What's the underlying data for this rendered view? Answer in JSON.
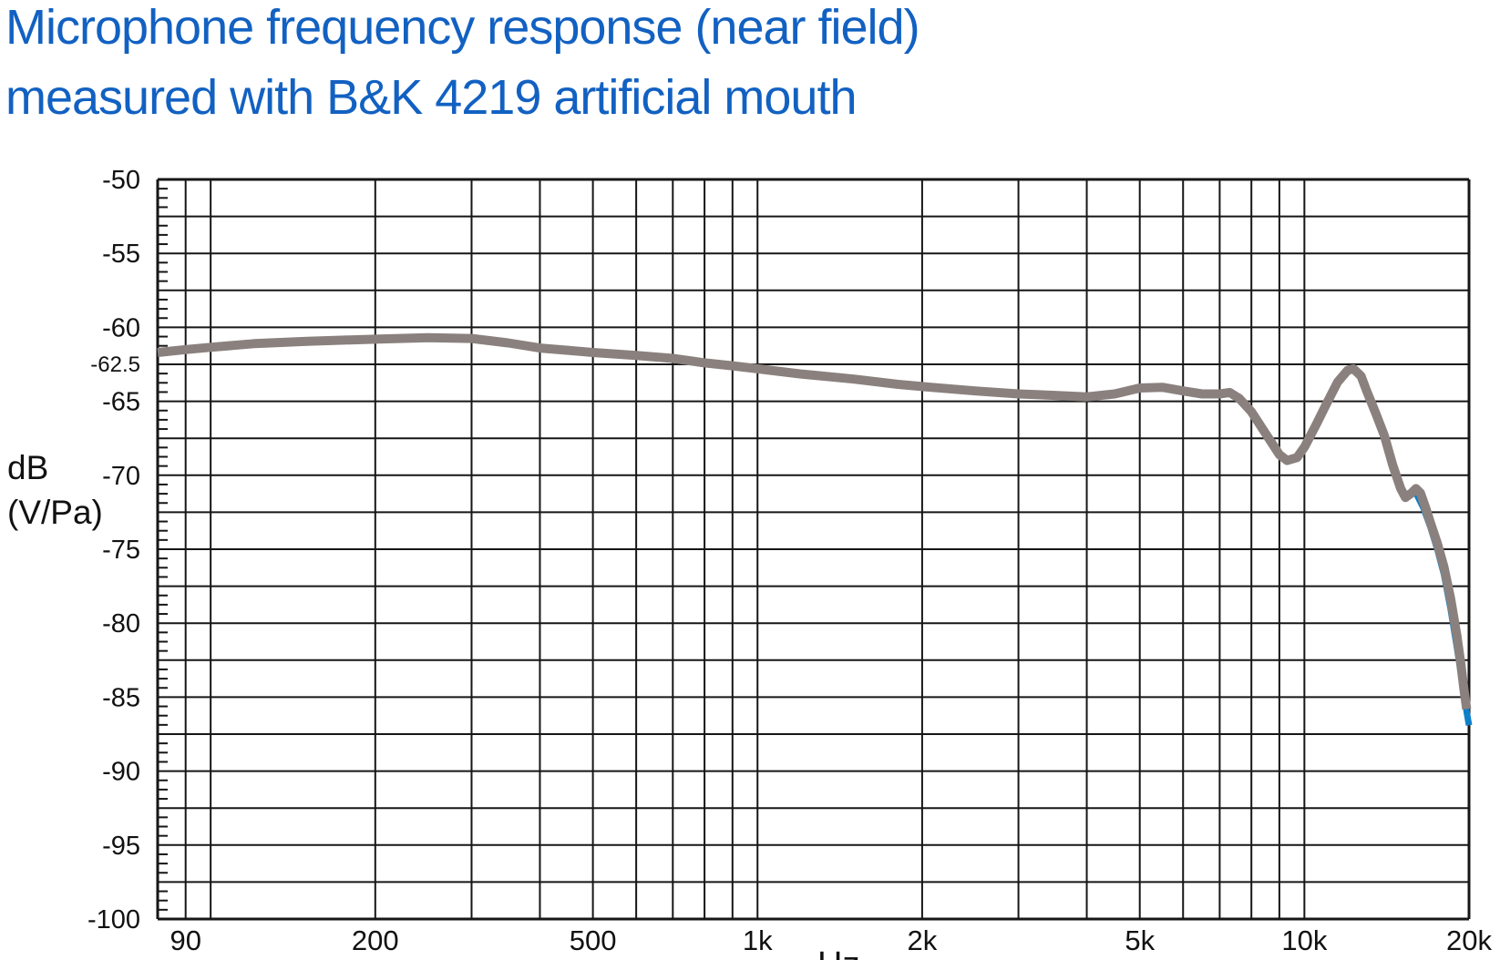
{
  "title": {
    "line1": "Microphone frequency response (near field)",
    "line2": "measured with B&K 4219 artificial mouth"
  },
  "axes": {
    "y_label_line1": "dB",
    "y_label_line2": "(V/Pa)",
    "x_unit": "Hz"
  },
  "colors": {
    "title": "#1261c2",
    "grid": "#161616",
    "text": "#111111",
    "curve_gray": "#8a817e",
    "curve_blue": "#0e7fc9",
    "background": "#ffffff"
  },
  "chart_data": {
    "type": "line",
    "title": "Microphone frequency response (near field) measured with B&K 4219 artificial mouth",
    "xlabel": "Hz",
    "ylabel": "dB (V/Pa)",
    "x_scale": "log",
    "x_range_hz": [
      80,
      20000
    ],
    "y_range_db": [
      -100,
      -50
    ],
    "grid": {
      "y_gridline_step_db": 2.5,
      "y_minor_tick_step_db": 0.625,
      "x_gridlines_hz": [
        90,
        100,
        200,
        300,
        400,
        500,
        600,
        700,
        800,
        900,
        1000,
        2000,
        3000,
        4000,
        5000,
        6000,
        7000,
        8000,
        9000,
        10000,
        20000
      ],
      "grid_on": true,
      "legend": "none"
    },
    "x_tick_labels": [
      {
        "hz": 90,
        "label": "90"
      },
      {
        "hz": 200,
        "label": "200"
      },
      {
        "hz": 500,
        "label": "500"
      },
      {
        "hz": 1000,
        "label": "1k"
      },
      {
        "hz": 2000,
        "label": "2k"
      },
      {
        "hz": 5000,
        "label": "5k"
      },
      {
        "hz": 10000,
        "label": "10k"
      },
      {
        "hz": 20000,
        "label": "20k"
      }
    ],
    "y_tick_labels": [
      {
        "db": -50,
        "label": "-50",
        "small": false
      },
      {
        "db": -55,
        "label": "-55",
        "small": false
      },
      {
        "db": -60,
        "label": "-60",
        "small": false
      },
      {
        "db": -62.5,
        "label": "-62.5",
        "small": true
      },
      {
        "db": -65,
        "label": "-65",
        "small": false
      },
      {
        "db": -70,
        "label": "-70",
        "small": false
      },
      {
        "db": -75,
        "label": "-75",
        "small": false
      },
      {
        "db": -80,
        "label": "-80",
        "small": false
      },
      {
        "db": -85,
        "label": "-85",
        "small": false
      },
      {
        "db": -90,
        "label": "-90",
        "small": false
      },
      {
        "db": -95,
        "label": "-95",
        "small": false
      },
      {
        "db": -100,
        "label": "-100",
        "small": false
      }
    ],
    "series": [
      {
        "name": "secondary-trace",
        "color_key": "curve_blue",
        "stroke_width": 7,
        "note": "mostly hidden behind main curve; visible only at high-frequency roll-off",
        "points": [
          [
            16000,
            -71.2
          ],
          [
            16500,
            -72.2
          ],
          [
            17000,
            -73.5
          ],
          [
            17500,
            -75.0
          ],
          [
            18000,
            -76.7
          ],
          [
            18500,
            -79.0
          ],
          [
            19000,
            -81.6
          ],
          [
            19400,
            -83.8
          ],
          [
            19800,
            -86.0
          ],
          [
            20000,
            -86.9
          ]
        ]
      },
      {
        "name": "frequency-response",
        "color_key": "curve_gray",
        "stroke_width": 10,
        "points": [
          [
            80,
            -61.7
          ],
          [
            90,
            -61.5
          ],
          [
            100,
            -61.35
          ],
          [
            120,
            -61.1
          ],
          [
            150,
            -60.95
          ],
          [
            180,
            -60.85
          ],
          [
            200,
            -60.8
          ],
          [
            250,
            -60.7
          ],
          [
            300,
            -60.75
          ],
          [
            350,
            -61.05
          ],
          [
            400,
            -61.4
          ],
          [
            450,
            -61.55
          ],
          [
            500,
            -61.7
          ],
          [
            600,
            -61.9
          ],
          [
            700,
            -62.1
          ],
          [
            800,
            -62.4
          ],
          [
            900,
            -62.6
          ],
          [
            1000,
            -62.8
          ],
          [
            1200,
            -63.15
          ],
          [
            1500,
            -63.5
          ],
          [
            1800,
            -63.85
          ],
          [
            2000,
            -64.0
          ],
          [
            2500,
            -64.3
          ],
          [
            3000,
            -64.5
          ],
          [
            3500,
            -64.6
          ],
          [
            4000,
            -64.7
          ],
          [
            4500,
            -64.5
          ],
          [
            5000,
            -64.1
          ],
          [
            5500,
            -64.05
          ],
          [
            6000,
            -64.3
          ],
          [
            6500,
            -64.5
          ],
          [
            7000,
            -64.5
          ],
          [
            7300,
            -64.4
          ],
          [
            7600,
            -64.8
          ],
          [
            8000,
            -65.7
          ],
          [
            8500,
            -67.2
          ],
          [
            9000,
            -68.6
          ],
          [
            9300,
            -69.0
          ],
          [
            9700,
            -68.8
          ],
          [
            10000,
            -68.1
          ],
          [
            10500,
            -66.6
          ],
          [
            11000,
            -65.1
          ],
          [
            11500,
            -63.7
          ],
          [
            12000,
            -62.9
          ],
          [
            12300,
            -62.8
          ],
          [
            12700,
            -63.3
          ],
          [
            13000,
            -64.3
          ],
          [
            13500,
            -65.8
          ],
          [
            14000,
            -67.3
          ],
          [
            14500,
            -69.3
          ],
          [
            15000,
            -70.9
          ],
          [
            15300,
            -71.5
          ],
          [
            15700,
            -71.2
          ],
          [
            16000,
            -70.9
          ],
          [
            16300,
            -71.2
          ],
          [
            16700,
            -72.3
          ],
          [
            17000,
            -73.2
          ],
          [
            17500,
            -74.6
          ],
          [
            18000,
            -76.2
          ],
          [
            18500,
            -78.3
          ],
          [
            19000,
            -80.8
          ],
          [
            19300,
            -82.6
          ],
          [
            19600,
            -84.6
          ],
          [
            19800,
            -85.8
          ]
        ]
      }
    ]
  }
}
